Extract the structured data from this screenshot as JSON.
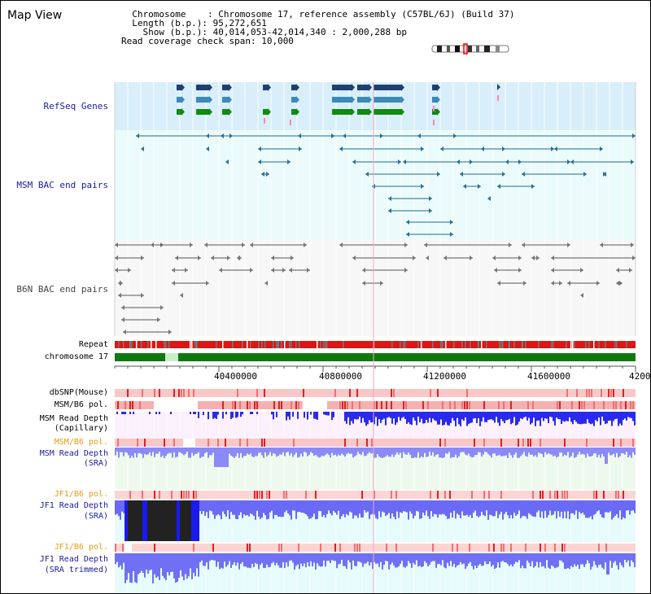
{
  "view": {
    "title": "Map View"
  },
  "info": {
    "chromosome_key": "  Chromosome    ",
    "chromosome_val": ": Chromosome 17, reference assembly (C57BL/6J) (Build 37)",
    "length_key": "  Length (b.p.)",
    "length_val": ": 95,272,651",
    "show_key": "    Show (b.p.)",
    "show_val": ": 40,014,053-42,014,340 : 2,000,288 bp",
    "coverage_key": "Read coverage check span",
    "coverage_val": ": 10,000"
  },
  "tracks": {
    "refseq": "RefSeq Genes",
    "msm_bac": "MSM BAC end pairs",
    "b6n_bac": "B6N BAC end pairs",
    "repeat": "Repeat",
    "chromosome": "chromosome 17",
    "dbsnp": "dbSNP(Mouse)",
    "msm_b6_pol_1": "MSM/B6 pol.",
    "msm_depth_cap_1": "MSM Read Depth",
    "msm_depth_cap_2": "(Capillary)",
    "msm_b6_pol_2": "MSM/B6 pol.",
    "msm_depth_sra_1": "MSM Read Depth",
    "msm_depth_sra_2": "(SRA)",
    "jf1_b6_pol_1": "JF1/B6 pol.",
    "jf1_depth_sra_1": "JF1 Read Depth",
    "jf1_depth_sra_2": "(SRA)",
    "jf1_b6_pol_2": "JF1/B6 pol.",
    "jf1_depth_trim_1": "JF1 Read Depth",
    "jf1_depth_trim_2": "(SRA trimmed)"
  },
  "axis": {
    "ticks": [
      "40400000",
      "40800000",
      "41200000",
      "41600000",
      "4200"
    ]
  },
  "colors": {
    "refseq_bg": "#d8eefa",
    "bac_bg": "#ebfbfb",
    "b6n_bg": "#f6f6f6",
    "msm_gene": "#1f5f86",
    "chromosome_green": "#0e7a0e",
    "depth_blue": "#2222ee",
    "depth_light": "#8a8af8",
    "pol_pink": "#f8c8c8",
    "pol_red": "#e02020"
  }
}
